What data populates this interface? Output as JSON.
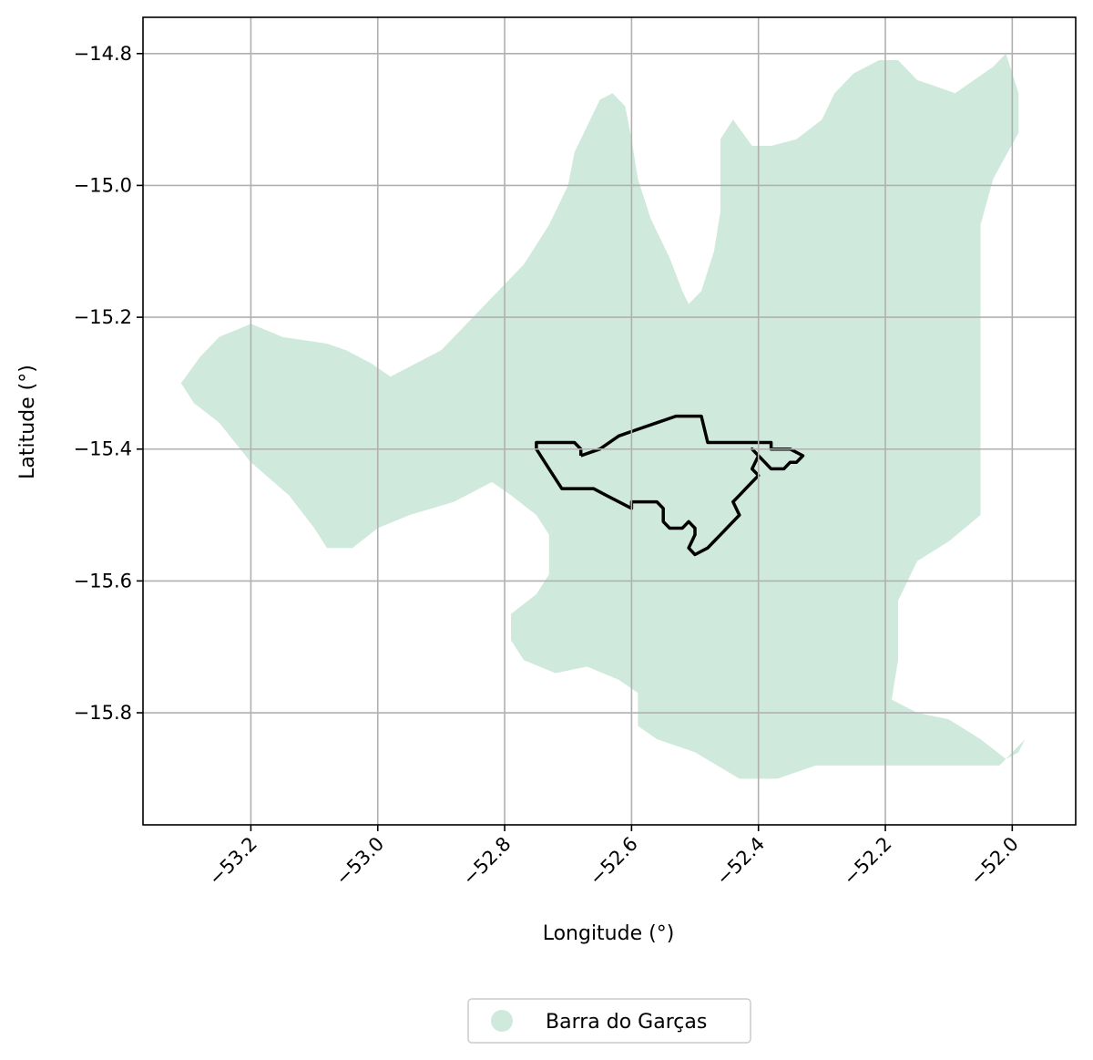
{
  "chart_data": {
    "type": "map",
    "xlabel": "Longitude (°)",
    "ylabel": "Latitude (°)",
    "xlim": [
      -53.37,
      -51.9
    ],
    "ylim": [
      -15.97,
      -14.745
    ],
    "xticks": [
      -53.2,
      -53.0,
      -52.8,
      -52.6,
      -52.4,
      -52.2,
      -52.0
    ],
    "xtick_labels": [
      "−53.2",
      "−53.0",
      "−52.8",
      "−52.6",
      "−52.4",
      "−52.2",
      "−52.0"
    ],
    "yticks": [
      -14.8,
      -15.0,
      -15.2,
      -15.4,
      -15.6,
      -15.8
    ],
    "ytick_labels": [
      "−14.8",
      "−15.0",
      "−15.2",
      "−15.4",
      "−15.6",
      "−15.8"
    ],
    "grid": true,
    "legend": {
      "placement": "bottom-center",
      "entries": [
        "Barra do Garças"
      ]
    },
    "colors": {
      "region_fill": "#cfeadd",
      "outline": "#000000",
      "grid": "#b0b0b0"
    },
    "region": {
      "name": "Barra do Garças",
      "outline": [
        [
          -53.31,
          -15.3
        ],
        [
          -53.28,
          -15.26
        ],
        [
          -53.25,
          -15.23
        ],
        [
          -53.2,
          -15.21
        ],
        [
          -53.15,
          -15.23
        ],
        [
          -53.08,
          -15.24
        ],
        [
          -53.05,
          -15.25
        ],
        [
          -53.01,
          -15.27
        ],
        [
          -52.98,
          -15.29
        ],
        [
          -52.94,
          -15.27
        ],
        [
          -52.9,
          -15.25
        ],
        [
          -52.86,
          -15.21
        ],
        [
          -52.82,
          -15.17
        ],
        [
          -52.77,
          -15.12
        ],
        [
          -52.73,
          -15.06
        ],
        [
          -52.7,
          -15.0
        ],
        [
          -52.69,
          -14.95
        ],
        [
          -52.67,
          -14.91
        ],
        [
          -52.65,
          -14.87
        ],
        [
          -52.63,
          -14.86
        ],
        [
          -52.61,
          -14.88
        ],
        [
          -52.6,
          -14.93
        ],
        [
          -52.59,
          -14.99
        ],
        [
          -52.57,
          -15.05
        ],
        [
          -52.54,
          -15.11
        ],
        [
          -52.52,
          -15.16
        ],
        [
          -52.51,
          -15.18
        ],
        [
          -52.49,
          -15.16
        ],
        [
          -52.47,
          -15.1
        ],
        [
          -52.46,
          -15.04
        ],
        [
          -52.46,
          -14.98
        ],
        [
          -52.46,
          -14.93
        ],
        [
          -52.44,
          -14.9
        ],
        [
          -52.41,
          -14.94
        ],
        [
          -52.38,
          -14.94
        ],
        [
          -52.34,
          -14.93
        ],
        [
          -52.3,
          -14.9
        ],
        [
          -52.28,
          -14.86
        ],
        [
          -52.25,
          -14.83
        ],
        [
          -52.21,
          -14.81
        ],
        [
          -52.18,
          -14.81
        ],
        [
          -52.15,
          -14.84
        ],
        [
          -52.12,
          -14.85
        ],
        [
          -52.09,
          -14.86
        ],
        [
          -52.06,
          -14.84
        ],
        [
          -52.03,
          -14.82
        ],
        [
          -52.01,
          -14.8
        ],
        [
          -51.99,
          -14.86
        ],
        [
          -51.99,
          -14.92
        ],
        [
          -52.03,
          -14.99
        ],
        [
          -52.05,
          -15.06
        ],
        [
          -52.05,
          -15.14
        ],
        [
          -52.05,
          -15.22
        ],
        [
          -52.05,
          -15.32
        ],
        [
          -52.05,
          -15.42
        ],
        [
          -52.05,
          -15.5
        ],
        [
          -52.1,
          -15.54
        ],
        [
          -52.15,
          -15.57
        ],
        [
          -52.18,
          -15.63
        ],
        [
          -52.18,
          -15.72
        ],
        [
          -52.19,
          -15.78
        ],
        [
          -52.15,
          -15.8
        ],
        [
          -52.1,
          -15.81
        ],
        [
          -52.05,
          -15.84
        ],
        [
          -52.01,
          -15.87
        ],
        [
          -51.99,
          -15.86
        ],
        [
          -51.98,
          -15.84
        ],
        [
          -52.02,
          -15.88
        ],
        [
          -52.1,
          -15.88
        ],
        [
          -52.18,
          -15.88
        ],
        [
          -52.25,
          -15.88
        ],
        [
          -52.31,
          -15.88
        ],
        [
          -52.37,
          -15.9
        ],
        [
          -52.43,
          -15.9
        ],
        [
          -52.5,
          -15.86
        ],
        [
          -52.56,
          -15.84
        ],
        [
          -52.59,
          -15.82
        ],
        [
          -52.59,
          -15.77
        ],
        [
          -52.62,
          -15.75
        ],
        [
          -52.67,
          -15.73
        ],
        [
          -52.72,
          -15.74
        ],
        [
          -52.77,
          -15.72
        ],
        [
          -52.79,
          -15.69
        ],
        [
          -52.79,
          -15.65
        ],
        [
          -52.75,
          -15.62
        ],
        [
          -52.73,
          -15.59
        ],
        [
          -52.73,
          -15.53
        ],
        [
          -52.75,
          -15.5
        ],
        [
          -52.79,
          -15.47
        ],
        [
          -52.82,
          -15.45
        ],
        [
          -52.88,
          -15.48
        ],
        [
          -52.95,
          -15.5
        ],
        [
          -53.0,
          -15.52
        ],
        [
          -53.04,
          -15.55
        ],
        [
          -53.08,
          -15.55
        ],
        [
          -53.1,
          -15.52
        ],
        [
          -53.14,
          -15.47
        ],
        [
          -53.2,
          -15.42
        ],
        [
          -53.25,
          -15.36
        ],
        [
          -53.29,
          -15.33
        ],
        [
          -53.31,
          -15.3
        ]
      ]
    },
    "outline_feature": {
      "points": [
        [
          -52.68,
          -15.41
        ],
        [
          -52.65,
          -15.4
        ],
        [
          -52.62,
          -15.38
        ],
        [
          -52.59,
          -15.37
        ],
        [
          -52.56,
          -15.36
        ],
        [
          -52.53,
          -15.35
        ],
        [
          -52.5,
          -15.35
        ],
        [
          -52.49,
          -15.35
        ],
        [
          -52.48,
          -15.39
        ],
        [
          -52.44,
          -15.39
        ],
        [
          -52.4,
          -15.39
        ],
        [
          -52.38,
          -15.39
        ],
        [
          -52.38,
          -15.4
        ],
        [
          -52.35,
          -15.4
        ],
        [
          -52.33,
          -15.41
        ],
        [
          -52.34,
          -15.42
        ],
        [
          -52.35,
          -15.42
        ],
        [
          -52.36,
          -15.43
        ],
        [
          -52.38,
          -15.43
        ],
        [
          -52.39,
          -15.42
        ],
        [
          -52.4,
          -15.41
        ],
        [
          -52.41,
          -15.4
        ],
        [
          -52.4,
          -15.41
        ],
        [
          -52.41,
          -15.43
        ],
        [
          -52.4,
          -15.44
        ],
        [
          -52.41,
          -15.45
        ],
        [
          -52.42,
          -15.46
        ],
        [
          -52.43,
          -15.47
        ],
        [
          -52.44,
          -15.48
        ],
        [
          -52.43,
          -15.5
        ],
        [
          -52.44,
          -15.51
        ],
        [
          -52.45,
          -15.52
        ],
        [
          -52.46,
          -15.53
        ],
        [
          -52.47,
          -15.54
        ],
        [
          -52.48,
          -15.55
        ],
        [
          -52.5,
          -15.56
        ],
        [
          -52.51,
          -15.55
        ],
        [
          -52.5,
          -15.53
        ],
        [
          -52.5,
          -15.52
        ],
        [
          -52.51,
          -15.51
        ],
        [
          -52.52,
          -15.52
        ],
        [
          -52.54,
          -15.52
        ],
        [
          -52.55,
          -15.51
        ],
        [
          -52.55,
          -15.49
        ],
        [
          -52.56,
          -15.48
        ],
        [
          -52.58,
          -15.48
        ],
        [
          -52.6,
          -15.48
        ],
        [
          -52.6,
          -15.49
        ],
        [
          -52.62,
          -15.48
        ],
        [
          -52.64,
          -15.47
        ],
        [
          -52.66,
          -15.46
        ],
        [
          -52.68,
          -15.46
        ],
        [
          -52.71,
          -15.46
        ],
        [
          -52.73,
          -15.43
        ],
        [
          -52.75,
          -15.4
        ],
        [
          -52.75,
          -15.39
        ],
        [
          -52.72,
          -15.39
        ],
        [
          -52.69,
          -15.39
        ],
        [
          -52.68,
          -15.4
        ],
        [
          -52.68,
          -15.41
        ]
      ]
    }
  }
}
